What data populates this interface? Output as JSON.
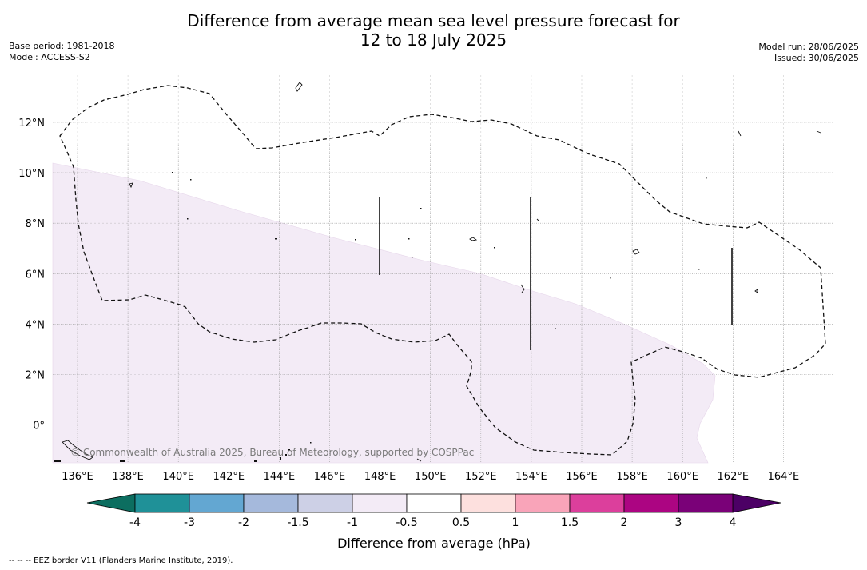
{
  "title_line1": "Difference from average mean sea level pressure forecast for",
  "title_line2": "12 to 18 July 2025",
  "base_period": "Base period: 1981-2018",
  "model": "Model: ACCESS-S2",
  "model_run": "Model run: 28/06/2025",
  "issued": "Issued: 30/06/2025",
  "copyright": "© Commonwealth of Australia 2025, Bureau of Meteorology, supported by COSPPac",
  "footnote": "--  --  -- EEZ border V11 (Flanders Marine Institute, 2019).",
  "lon_labels": [
    "136°E",
    "138°E",
    "140°E",
    "142°E",
    "144°E",
    "146°E",
    "148°E",
    "150°E",
    "152°E",
    "154°E",
    "156°E",
    "158°E",
    "160°E",
    "162°E",
    "164°E"
  ],
  "lat_labels": [
    "12°N",
    "10°N",
    "8°N",
    "6°N",
    "4°N",
    "2°N",
    "0°"
  ],
  "colorbar": {
    "label": "Difference from average (hPa)",
    "tick_labels": [
      "-4",
      "-3",
      "-2",
      "-1.5",
      "-1",
      "-0.5",
      "0.5",
      "1",
      "1.5",
      "2",
      "3",
      "4"
    ],
    "colors": [
      "#1f9198",
      "#63a7d2",
      "#a5b9dc",
      "#cdd0e6",
      "#f3ebf6",
      "#ffffff",
      "#fde0de",
      "#f9a4b9",
      "#dc3f9c",
      "#ac0582",
      "#7a0178"
    ],
    "under_color": "#0c6e60",
    "over_color": "#4c0065"
  },
  "map_legend": {
    "fill_color": "#f3ebf6",
    "fill_category": "-1 to -0.5 hPa"
  }
}
